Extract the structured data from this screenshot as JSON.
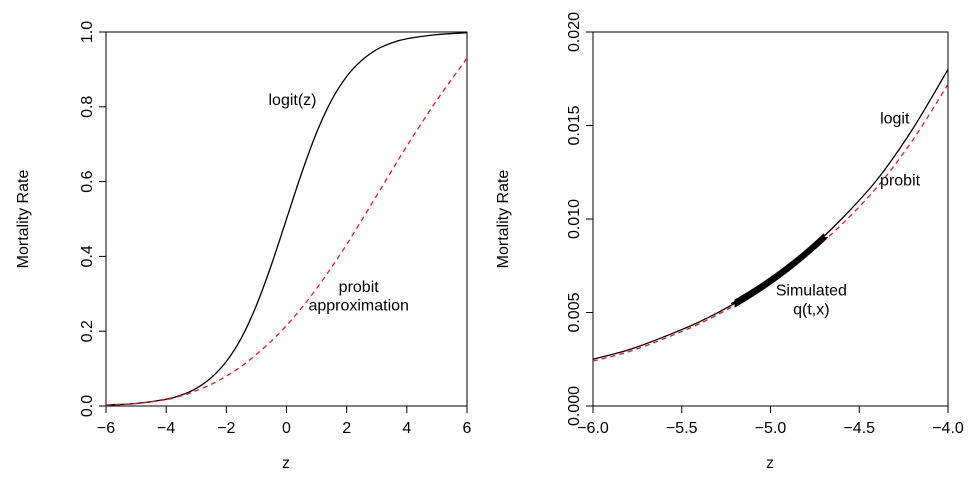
{
  "chart_data": [
    {
      "type": "line",
      "title": "",
      "xlabel": "z",
      "ylabel": "Mortality Rate",
      "xlim": [
        -6,
        6
      ],
      "ylim": [
        0,
        1
      ],
      "xticks": [
        -6,
        -4,
        -2,
        0,
        2,
        4,
        6
      ],
      "xtick_labels": [
        "−6",
        "−4",
        "−2",
        "0",
        "2",
        "4",
        "6"
      ],
      "yticks": [
        0,
        0.2,
        0.4,
        0.6,
        0.8,
        1
      ],
      "ytick_labels": [
        "0.0",
        "0.2",
        "0.4",
        "0.6",
        "0.8",
        "1.0"
      ],
      "grid": false,
      "series": [
        {
          "color": "#000000",
          "style": "solid",
          "x": [
            -6,
            -5,
            -4,
            -3.5,
            -3,
            -2.5,
            -2,
            -1.5,
            -1,
            -0.5,
            0,
            0.5,
            1,
            1.5,
            2,
            2.5,
            3,
            3.5,
            4,
            5,
            6
          ],
          "values": [
            0.0025,
            0.0067,
            0.018,
            0.029,
            0.047,
            0.076,
            0.119,
            0.182,
            0.269,
            0.378,
            0.5,
            0.622,
            0.731,
            0.818,
            0.881,
            0.924,
            0.953,
            0.971,
            0.982,
            0.993,
            0.998
          ]
        },
        {
          "color": "#e31a1c",
          "style": "dashed",
          "x": [
            -6,
            -5,
            -4,
            -3.5,
            -3,
            -2.5,
            -2,
            -1.5,
            -1,
            -0.5,
            0,
            0.5,
            1,
            1.5,
            2,
            2.5,
            3,
            3.5,
            4,
            5,
            6
          ],
          "values": [
            0.0024,
            0.0065,
            0.017,
            0.027,
            0.041,
            0.058,
            0.08,
            0.106,
            0.138,
            0.174,
            0.215,
            0.262,
            0.314,
            0.371,
            0.432,
            0.497,
            0.563,
            0.629,
            0.695,
            0.818,
            0.93
          ]
        }
      ],
      "annotations": [
        {
          "text": "logit(z)",
          "x": 0.2,
          "y": 0.805
        },
        {
          "text": "probit",
          "x": 2.4,
          "y": 0.305
        },
        {
          "text": "approximation",
          "x": 2.4,
          "y": 0.255
        }
      ]
    },
    {
      "type": "line",
      "title": "",
      "xlabel": "z",
      "ylabel": "Mortality Rate",
      "xlim": [
        -6,
        -4
      ],
      "ylim": [
        0,
        0.02
      ],
      "xticks": [
        -6,
        -5.5,
        -5,
        -4.5,
        -4
      ],
      "xtick_labels": [
        "−6.0",
        "−5.5",
        "−5.0",
        "−4.5",
        "−4.0"
      ],
      "yticks": [
        0,
        0.005,
        0.01,
        0.015,
        0.02
      ],
      "ytick_labels": [
        "0.000",
        "0.005",
        "0.010",
        "0.015",
        "0.020"
      ],
      "grid": false,
      "series": [
        {
          "color": "#000000",
          "style": "solid",
          "x": [
            -6,
            -5.8,
            -5.6,
            -5.4,
            -5.2,
            -5,
            -4.8,
            -4.6,
            -4.4,
            -4.2,
            -4
          ],
          "values": [
            0.0025,
            0.003,
            0.0037,
            0.0045,
            0.0055,
            0.0067,
            0.0082,
            0.01,
            0.0121,
            0.0148,
            0.018
          ]
        },
        {
          "color": "#e31a1c",
          "style": "dashed",
          "x": [
            -6,
            -5.8,
            -5.6,
            -5.4,
            -5.2,
            -5,
            -4.8,
            -4.6,
            -4.4,
            -4.2,
            -4
          ],
          "values": [
            0.0024,
            0.0029,
            0.0036,
            0.0044,
            0.0054,
            0.0066,
            0.008,
            0.0097,
            0.0117,
            0.0142,
            0.0172
          ]
        },
        {
          "type": "scatter",
          "marker": "+",
          "color": "#000000",
          "x_range": [
            -5.2,
            -4.7
          ],
          "count": 120
        }
      ],
      "annotations": [
        {
          "text": "logit",
          "x": -4.3,
          "y": 0.0151
        },
        {
          "text": "probit",
          "x": -4.27,
          "y": 0.0118
        },
        {
          "text": "Simulated",
          "x": -4.77,
          "y": 0.0059
        },
        {
          "text": "q(t,x)",
          "x": -4.77,
          "y": 0.0049
        }
      ]
    }
  ]
}
